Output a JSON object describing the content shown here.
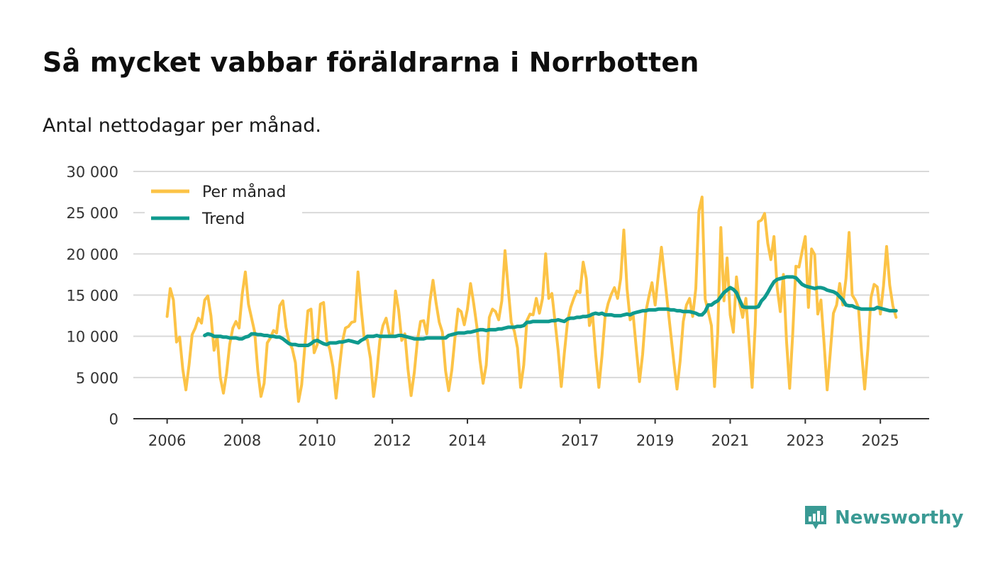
{
  "chart_data": {
    "type": "line",
    "title": "Så mycket vabbar föräldrarna i Norrbotten",
    "subtitle": "Antal nettodagar per månad.",
    "xlabel": "",
    "ylabel": "",
    "ylim": [
      0,
      30000
    ],
    "xlim": [
      2005.1,
      2026.3
    ],
    "y_ticks": [
      0,
      5000,
      10000,
      15000,
      20000,
      25000,
      30000
    ],
    "y_tick_labels": [
      "0",
      "5 000",
      "10 000",
      "15 000",
      "20 000",
      "25 000",
      "30 000"
    ],
    "x_ticks": [
      2006,
      2008,
      2010,
      2012,
      2014,
      2017,
      2019,
      2021,
      2023,
      2025
    ],
    "x_tick_labels": [
      "2006",
      "2008",
      "2010",
      "2012",
      "2014",
      "2017",
      "2019",
      "2021",
      "2023",
      "2025"
    ],
    "grid": true,
    "legend_position": "top-left",
    "series": [
      {
        "name": "Per månad",
        "color": "#fcc346",
        "start_year": 2006,
        "start_month": 1,
        "values": [
          12400,
          15800,
          14400,
          9300,
          9900,
          6000,
          3500,
          6500,
          10200,
          11000,
          12200,
          11600,
          14400,
          14900,
          12500,
          8300,
          10000,
          5000,
          3100,
          5500,
          9000,
          11000,
          11800,
          11000,
          15100,
          17800,
          13900,
          12200,
          10500,
          5800,
          2700,
          4300,
          9200,
          9800,
          10700,
          10400,
          13700,
          14300,
          11100,
          9300,
          8500,
          6800,
          2100,
          4100,
          8700,
          13100,
          13300,
          8000,
          9000,
          13900,
          14100,
          9600,
          8400,
          6300,
          2500,
          5900,
          9300,
          11000,
          11200,
          11700,
          11800,
          17800,
          13500,
          9700,
          9600,
          7300,
          2700,
          5500,
          9500,
          11300,
          12200,
          10300,
          10000,
          15500,
          13200,
          9500,
          10300,
          6000,
          2800,
          5600,
          9500,
          11800,
          11900,
          10300,
          14200,
          16800,
          14000,
          11700,
          10500,
          5800,
          3400,
          5900,
          9800,
          13300,
          13000,
          11400,
          13300,
          16400,
          14000,
          11200,
          7100,
          4300,
          6500,
          12300,
          13300,
          13000,
          12000,
          14300,
          20400,
          15900,
          11700,
          10600,
          8600,
          3800,
          6500,
          11900,
          12700,
          12600,
          14600,
          12800,
          14600,
          20000,
          14600,
          15200,
          11800,
          8300,
          3900,
          8000,
          11800,
          13500,
          14600,
          15500,
          15300,
          19000,
          17000,
          11300,
          12700,
          7700,
          3800,
          7600,
          12400,
          14000,
          15100,
          15900,
          14600,
          17000,
          22900,
          15800,
          12000,
          12500,
          8400,
          4500,
          7800,
          12900,
          14800,
          16500,
          13800,
          17400,
          20800,
          17300,
          13800,
          10300,
          6800,
          3600,
          7000,
          11800,
          13800,
          14600,
          12400,
          15800,
          25200,
          26900,
          14500,
          13000,
          11300,
          3900,
          10400,
          23200,
          14300,
          19500,
          12600,
          10500,
          17200,
          14000,
          12300,
          14600,
          9300,
          3800,
          11400,
          23900,
          24100,
          24900,
          21300,
          19300,
          22100,
          15900,
          13000,
          17500,
          9400,
          3700,
          10400,
          18500,
          18400,
          20300,
          22100,
          13500,
          20600,
          19900,
          12700,
          14400,
          9200,
          3500,
          8000,
          12800,
          13800,
          16400,
          13800,
          17000,
          22600,
          15000,
          14400,
          13500,
          8100,
          3600,
          8500,
          14700,
          16300,
          16000,
          12700,
          16100,
          20900,
          16200,
          13700,
          12300
        ]
      },
      {
        "name": "Trend",
        "color": "#0f9a8e",
        "start_year": 2007,
        "start_month": 1,
        "values": [
          10100,
          10300,
          10200,
          10000,
          10000,
          10000,
          9900,
          9900,
          9800,
          9800,
          9800,
          9700,
          9700,
          9900,
          10000,
          10300,
          10300,
          10200,
          10200,
          10100,
          10100,
          10000,
          10000,
          9900,
          9900,
          9700,
          9400,
          9100,
          9000,
          9000,
          8900,
          8900,
          8900,
          8900,
          9100,
          9400,
          9500,
          9300,
          9100,
          9000,
          9200,
          9200,
          9200,
          9300,
          9300,
          9400,
          9500,
          9400,
          9300,
          9200,
          9500,
          9700,
          10000,
          10000,
          10000,
          10100,
          10000,
          10000,
          10000,
          10000,
          10000,
          10000,
          10100,
          10100,
          10000,
          9900,
          9800,
          9700,
          9700,
          9700,
          9700,
          9800,
          9800,
          9800,
          9800,
          9800,
          9800,
          9800,
          10100,
          10200,
          10300,
          10400,
          10400,
          10400,
          10500,
          10500,
          10600,
          10700,
          10800,
          10800,
          10700,
          10800,
          10800,
          10800,
          10900,
          10900,
          11000,
          11100,
          11100,
          11100,
          11200,
          11200,
          11300,
          11700,
          11700,
          11800,
          11800,
          11800,
          11800,
          11800,
          11800,
          11900,
          11900,
          12000,
          11900,
          11800,
          12100,
          12200,
          12200,
          12300,
          12300,
          12400,
          12400,
          12500,
          12700,
          12800,
          12700,
          12800,
          12600,
          12600,
          12600,
          12500,
          12500,
          12500,
          12600,
          12700,
          12600,
          12800,
          12900,
          13000,
          13100,
          13100,
          13200,
          13200,
          13200,
          13300,
          13300,
          13300,
          13300,
          13200,
          13200,
          13100,
          13100,
          13000,
          13000,
          13000,
          12900,
          12800,
          12600,
          12600,
          13000,
          13800,
          13800,
          14100,
          14300,
          14800,
          15300,
          15600,
          15900,
          15700,
          15300,
          14400,
          13600,
          13500,
          13500,
          13500,
          13500,
          13600,
          14300,
          14700,
          15300,
          16000,
          16600,
          16900,
          17000,
          17100,
          17200,
          17200,
          17200,
          17100,
          16700,
          16300,
          16100,
          16000,
          15900,
          15800,
          15900,
          15900,
          15800,
          15600,
          15500,
          15400,
          15200,
          14800,
          14400,
          13800,
          13700,
          13700,
          13500,
          13400,
          13300,
          13300,
          13300,
          13300,
          13300,
          13500,
          13400,
          13300,
          13200,
          13100,
          13100,
          13100
        ]
      }
    ]
  },
  "branding": {
    "name": "Newsworthy",
    "logo_icon": "newsworthy-bar-chart-icon",
    "color": "#3a9a94"
  }
}
